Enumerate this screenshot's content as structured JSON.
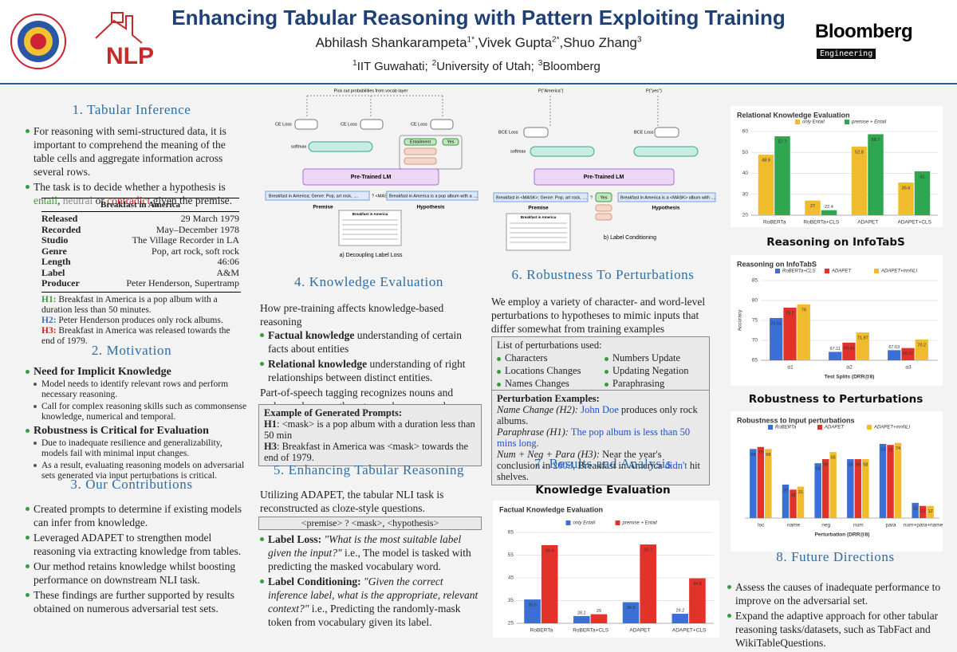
{
  "header": {
    "title": "Enhancing Tabular Reasoning with Pattern Exploiting Training",
    "authors": [
      {
        "name": "Abhilash Shankarampeta",
        "sup": "1*"
      },
      {
        "name": "Vivek Gupta",
        "sup": "2*"
      },
      {
        "name": "Shuo Zhang",
        "sup": "3"
      }
    ],
    "author_separator": ",",
    "affiliations": [
      {
        "sup": "1",
        "name": "IIT Guwahati;"
      },
      {
        "sup": "2",
        "name": "University of Utah;"
      },
      {
        "sup": "3",
        "name": "Bloomberg"
      }
    ],
    "left_logo_text": "NLP",
    "right_logo": "Bloomberg",
    "right_logo_sub": "Engineering"
  },
  "sections": {
    "tabular_inference": {
      "heading": "1. Tabular Inference",
      "bullets": [
        "For reasoning with semi-structured data, it is important to comprehend the meaning of the table cells and aggregate information across several rows.",
        [
          {
            "t": "The task is to decide whether a hypothesis is ",
            "s": "plain"
          },
          {
            "t": "entail",
            "s": "green"
          },
          {
            "t": ",",
            "s": "plain"
          },
          {
            "t": " neutral",
            "s": "gray"
          },
          {
            "t": " or ",
            "s": "plain"
          },
          {
            "t": "contradict",
            "s": "red"
          },
          {
            "t": " given the premise.",
            "s": "plain"
          }
        ]
      ],
      "table": {
        "title": "Breakfast in America",
        "rows": [
          [
            "Released",
            "29 March 1979"
          ],
          [
            "Recorded",
            "May–December 1978"
          ],
          [
            "Studio",
            "The Village Recorder in LA"
          ],
          [
            "Genre",
            "Pop, art rock, soft rock"
          ],
          [
            "Length",
            "46:06"
          ],
          [
            "Label",
            "A&M"
          ],
          [
            "Producer",
            "Peter Henderson, Supertramp"
          ]
        ]
      },
      "hypotheses": [
        [
          {
            "t": "H1:",
            "s": "green-b"
          },
          {
            "t": " Breakfast in America is a pop album with a duration less than 50 minutes.",
            "s": "plain"
          }
        ],
        [
          {
            "t": "H2:",
            "s": "blue-b"
          },
          {
            "t": " Peter Henderson produces only rock albums.",
            "s": "plain"
          }
        ],
        [
          {
            "t": "H3:",
            "s": "red-b"
          },
          {
            "t": " Breakfast in America was released towards the end of 1979.",
            "s": "plain"
          }
        ]
      ]
    },
    "motivation": {
      "heading": "2. Motivation",
      "points": [
        {
          "title": "Need for Implicit Knowledge",
          "details": [
            "Model needs to identify relevant rows and perform necessary reasoning.",
            "Call for complex reasoning skills such as commonsense knowledge, numerical and temporal."
          ]
        },
        {
          "title": "Robustness is Critical for Evaluation",
          "details": [
            "Due to inadequate resilience and generalizability, models fail with minimal input changes.",
            "As a result, evaluating reasoning models on adversarial sets generated via input perturbations is critical."
          ]
        }
      ]
    },
    "contributions": {
      "heading": "3. Our Contributions",
      "bullets": [
        "Created prompts to determine if existing models can infer from knowledge.",
        "Leveraged ADAPET to strengthen model reasoning via extracting knowledge from tables.",
        "Our method retains knowledge whilst boosting performance on downstream NLI task.",
        "These findings are further supported by results obtained on numerous adversarial test sets."
      ]
    },
    "knowledge": {
      "heading": "4. Knowledge Evaluation",
      "intro": "How pre-training affects knowledge-based reasoning",
      "bullets": [
        [
          {
            "t": "Factual knowledge",
            "s": "b"
          },
          {
            "t": " understanding of certain facts about entities",
            "s": "plain"
          }
        ],
        [
          {
            "t": "Relational knowledge",
            "s": "b"
          },
          {
            "t": " understanding of right relationships between distinct entities.",
            "s": "plain"
          }
        ]
      ],
      "para": "Part-of-speech tagging recognizes nouns and verbs, and we use them to mask names and numbers.",
      "prompts_title": "Example of Generated Prompts:",
      "prompts": [
        [
          {
            "t": "H1",
            "s": "b"
          },
          {
            "t": ": <mask> is a pop album with a duration less than 50 min",
            "s": "plain"
          }
        ],
        [
          {
            "t": "H3",
            "s": "b"
          },
          {
            "t": ": Breakfast in America was <mask> towards the end of 1979.",
            "s": "plain"
          }
        ]
      ]
    },
    "enhancing": {
      "heading": "5. Enhancing Tabular Reasoning",
      "para": "Utilizing ADAPET, the tabular NLI task is reconstructed as cloze-style questions.",
      "template": "<premise> ? <mask>, <hypothesis>",
      "bullets": [
        [
          {
            "t": "Label Loss:",
            "s": "b"
          },
          {
            "t": " \"What is the most suitable label given the input?\"",
            "s": "i"
          },
          {
            "t": " i.e., The model is tasked with predicting the masked vocabulary word.",
            "s": "plain"
          }
        ],
        [
          {
            "t": "Label Conditioning:",
            "s": "b"
          },
          {
            "t": " \"Given the correct inference label, what is the appropriate, relevant context?\"",
            "s": "i"
          },
          {
            "t": " i.e., Predicting the randomly-mask token from vocabulary given its label.",
            "s": "plain"
          }
        ]
      ]
    },
    "robustness": {
      "heading": "6. Robustness To Perturbations",
      "para": "We employ a variety of character- and word-level perturbations to hypotheses to mimic inputs that differ somewhat from training examples distributions.",
      "list_title": "List of perturbations used:",
      "list": [
        "Characters",
        "Numbers Update",
        "Locations Changes",
        "Updating Negation",
        "Names Changes",
        "Paraphrasing"
      ],
      "examples_title": "Perturbation Examples:",
      "examples": [
        [
          {
            "t": "Name Change (H2):",
            "s": "i"
          },
          {
            "t": " John Doe",
            "s": "blue"
          },
          {
            "t": " produces only rock albums.",
            "s": "plain"
          }
        ],
        [
          {
            "t": "Paraphrase (H1):",
            "s": "i"
          },
          {
            "t": " The pop album is less than 50 mins long.",
            "s": "blue"
          }
        ],
        [
          {
            "t": "Num + Neg + Para (H3):",
            "s": "i"
          },
          {
            "t": " Near the year's conclusion in ",
            "s": "plain"
          },
          {
            "t": "2003",
            "s": "blue"
          },
          {
            "t": ", Breakfast in America ",
            "s": "plain"
          },
          {
            "t": "didn't",
            "s": "blue"
          },
          {
            "t": " hit shelves.",
            "s": "plain"
          }
        ]
      ]
    },
    "results": {
      "heading": "7. Results and Analysis",
      "subheading": "Knowledge Evaluation",
      "subheading_reasoning": "Reasoning on InfoTabS",
      "subheading_robustness": "Robustness to Perturbations"
    },
    "future": {
      "heading": "8. Future Directions",
      "bullets": [
        "Assess the causes of inadequate performance to improve on the adversarial set.",
        "Expand the adaptive approach for other tabular reasoning tasks/datasets, such as TabFact and WikiTableQuestions."
      ]
    }
  },
  "diagram_a": {
    "top_note": "Pick out probabilities from vocab layer",
    "losses": [
      "CE Loss",
      "CE Loss",
      "CE Loss"
    ],
    "softmax": "softmax",
    "label_words": [
      "Entailment",
      "Yes"
    ],
    "lm": "Pre-Trained LM",
    "premise_input": "Breakfast in America; Genre: Pop, art rock, ....",
    "mask": "? <MASK>",
    "hypothesis_input": "Breakfast in America is a pop album with a ....",
    "premise": "Premise",
    "hypothesis": "Hypothesis",
    "table_title": "Breakfast in America",
    "caption": "a) Decoupling Label Loss"
  },
  "diagram_b": {
    "probs": [
      "P(\"America\")",
      "P(\"yes\")"
    ],
    "losses": [
      "BCE Loss",
      "BCE Loss"
    ],
    "softmax": "softmax",
    "lm": "Pre-Trained LM",
    "premise_input": "Breakfast in <MASK>; Genre: Pop, art rock, ....",
    "mask": "?",
    "answer": "Yes",
    "hypothesis_input": "Breakfast in America is a <MASK> album with ....",
    "premise": "Premise",
    "hypothesis": "Hypothesis",
    "table_title": "Breakfast in America",
    "caption": "b) Label Conditioning"
  },
  "chart_data": [
    {
      "type": "bar",
      "title": "Factual Knowledge Evaluation",
      "legend": "top",
      "categories": [
        "RoBERTa",
        "RoBERTa+CLS",
        "ADAPET",
        "ADAPET+CLS"
      ],
      "series": [
        {
          "name": "only Entail",
          "color": "#3b6fd6",
          "values": [
            35.5,
            28.2,
            34.3,
            29.2
          ]
        },
        {
          "name": "premise + Entail",
          "color": "#e2332a",
          "values": [
            59.4,
            29,
            59.7,
            44.8
          ]
        }
      ],
      "ylim": [
        25,
        65
      ],
      "yticks": [
        25,
        35,
        45,
        55,
        65
      ],
      "grid": true
    },
    {
      "type": "bar",
      "title": "Relational Knowledge Evaluation",
      "legend": "top",
      "categories": [
        "RoBERTa",
        "RoBERTa+CLS",
        "ADAPET",
        "ADAPET+CLS"
      ],
      "series": [
        {
          "name": "only Entail",
          "color": "#f1bb2e",
          "values": [
            48.9,
            27,
            52.8,
            35.6
          ]
        },
        {
          "name": "premise + Entail",
          "color": "#2fa650",
          "values": [
            57.7,
            22.4,
            58.7,
            41
          ]
        }
      ],
      "ylim": [
        20,
        60
      ],
      "yticks": [
        20,
        30,
        40,
        50,
        60
      ],
      "grid": true
    },
    {
      "type": "bar",
      "title": "Reasoning on InfoTabS",
      "legend": "top",
      "xlabel": "Test Splits (DRR@8)",
      "ylabel": "Accuracy",
      "categories": [
        "α1",
        "α2",
        "α3"
      ],
      "series": [
        {
          "name": "RoBERTa+CLS",
          "color": "#3b6fd6",
          "values": [
            75.61,
            67.11,
            67.53
          ]
        },
        {
          "name": "ADAPET",
          "color": "#e2332a",
          "values": [
            78.2,
            69.43,
            68.07
          ]
        },
        {
          "name": "ADAPET+mnNLI",
          "color": "#f1bb2e",
          "values": [
            79,
            71.97,
            70.2
          ]
        }
      ],
      "ylim": [
        65,
        85
      ],
      "yticks": [
        65,
        70,
        75,
        80,
        85
      ],
      "grid": true
    },
    {
      "type": "bar",
      "title": "Robustness to Input perturbations",
      "legend": "top",
      "xlabel": "Perturbation (DRR@8)",
      "categories": [
        "loc",
        "name",
        "neg",
        "num",
        "para",
        "num+para+name"
      ],
      "series": [
        {
          "name": "RoBERTa",
          "color": "#3b6fd6",
          "values": [
            68,
            33,
            54,
            58,
            73,
            15
          ]
        },
        {
          "name": "ADAPET",
          "color": "#e2332a",
          "values": [
            70,
            28,
            58,
            58,
            72,
            12
          ]
        },
        {
          "name": "ADAPET+mnNLI",
          "color": "#f1bb2e",
          "values": [
            68,
            31,
            65,
            58,
            74,
            12
          ]
        }
      ],
      "ylim": [
        0,
        80
      ],
      "grid": false
    }
  ]
}
